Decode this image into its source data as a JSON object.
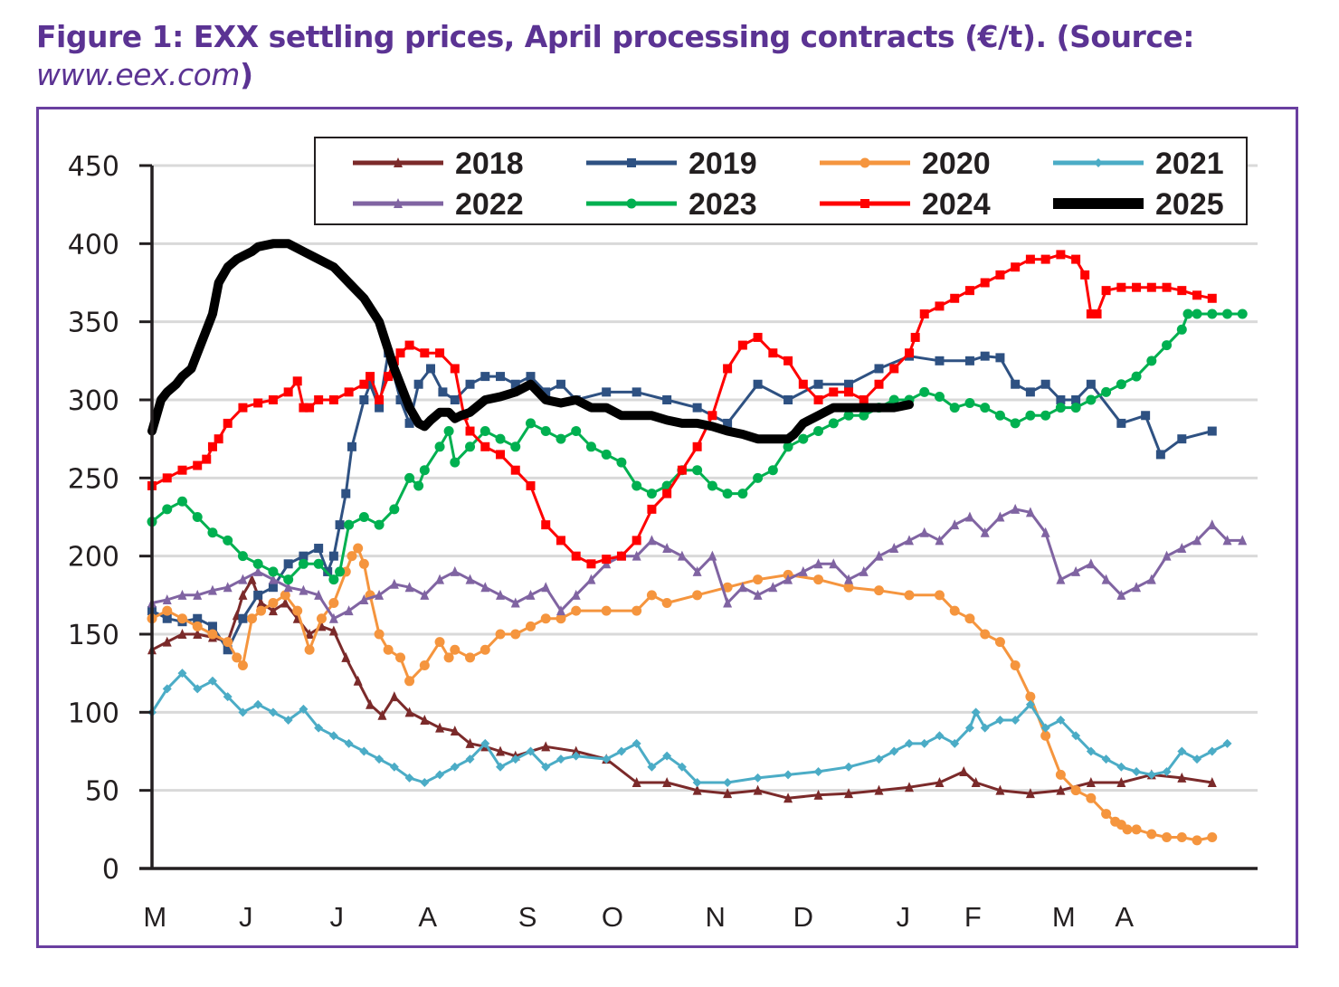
{
  "title": {
    "main": "Figure 1: EXX settling prices, April processing contracts (€/t). (Source:",
    "source": "www.eex.com",
    "close": ")"
  },
  "chart_data": {
    "type": "line",
    "title": "Figure 1: EXX settling prices, April processing contracts (€/t). (Source: www.eex.com)",
    "xlabel": "",
    "ylabel": "",
    "ylim": [
      0,
      450
    ],
    "xlim": [
      0,
      365
    ],
    "x_unit": "days from start of May",
    "yticks": [
      0,
      50,
      100,
      150,
      200,
      250,
      300,
      350,
      400,
      450
    ],
    "ytick_labels": [
      "0",
      "50",
      "100",
      "150",
      "200",
      "250",
      "300",
      "350",
      "400",
      "450"
    ],
    "month_ticks": [
      {
        "label": "M",
        "x": 1
      },
      {
        "label": "J",
        "x": 31
      },
      {
        "label": "J",
        "x": 61
      },
      {
        "label": "A",
        "x": 91
      },
      {
        "label": "S",
        "x": 124
      },
      {
        "label": "O",
        "x": 152
      },
      {
        "label": "N",
        "x": 186
      },
      {
        "label": "D",
        "x": 215
      },
      {
        "label": "J",
        "x": 248
      },
      {
        "label": "F",
        "x": 271
      },
      {
        "label": "M",
        "x": 301
      },
      {
        "label": "A",
        "x": 321
      }
    ],
    "grid": true,
    "legend": "top-right",
    "series": [
      {
        "name": "2018",
        "color": "#7b2a2a",
        "marker": "triangle",
        "width": 3,
        "x": [
          0,
          5,
          10,
          15,
          20,
          25,
          28,
          30,
          33,
          36,
          40,
          44,
          48,
          52,
          56,
          60,
          64,
          68,
          72,
          76,
          80,
          85,
          90,
          95,
          100,
          105,
          110,
          115,
          120,
          130,
          140,
          150,
          160,
          170,
          180,
          190,
          200,
          210,
          220,
          230,
          240,
          250,
          260,
          268,
          272,
          280,
          290,
          300,
          310,
          320,
          330,
          340,
          350
        ],
        "y": [
          140,
          145,
          150,
          150,
          148,
          145,
          162,
          175,
          185,
          170,
          165,
          170,
          160,
          150,
          155,
          152,
          135,
          120,
          105,
          98,
          110,
          100,
          95,
          90,
          88,
          80,
          78,
          75,
          72,
          78,
          75,
          70,
          55,
          55,
          50,
          48,
          50,
          45,
          47,
          48,
          50,
          52,
          55,
          62,
          55,
          50,
          48,
          50,
          55,
          55,
          60,
          58,
          55
        ]
      },
      {
        "name": "2019",
        "color": "#2e5182",
        "marker": "square",
        "width": 3,
        "x": [
          0,
          5,
          10,
          15,
          20,
          25,
          30,
          35,
          40,
          45,
          50,
          55,
          58,
          60,
          62,
          64,
          66,
          70,
          72,
          75,
          78,
          82,
          85,
          88,
          92,
          96,
          100,
          105,
          110,
          115,
          120,
          125,
          130,
          135,
          140,
          150,
          160,
          170,
          180,
          190,
          200,
          210,
          220,
          230,
          240,
          250,
          260,
          270,
          275,
          280,
          285,
          290,
          295,
          300,
          305,
          310,
          320,
          328,
          333,
          340,
          350
        ],
        "y": [
          165,
          160,
          158,
          160,
          155,
          140,
          160,
          175,
          180,
          195,
          200,
          205,
          190,
          200,
          220,
          240,
          270,
          300,
          310,
          295,
          330,
          300,
          285,
          310,
          320,
          305,
          300,
          310,
          315,
          315,
          310,
          315,
          305,
          310,
          300,
          305,
          305,
          300,
          295,
          285,
          310,
          300,
          310,
          310,
          320,
          328,
          325,
          325,
          328,
          327,
          310,
          305,
          310,
          300,
          300,
          310,
          285,
          290,
          265,
          275,
          280
        ]
      },
      {
        "name": "2020",
        "color": "#f5953e",
        "marker": "circle",
        "width": 3,
        "x": [
          0,
          5,
          10,
          15,
          20,
          25,
          28,
          30,
          33,
          36,
          40,
          44,
          48,
          52,
          56,
          60,
          64,
          66,
          68,
          70,
          72,
          75,
          78,
          82,
          85,
          90,
          95,
          98,
          100,
          105,
          110,
          115,
          120,
          125,
          130,
          135,
          140,
          150,
          160,
          165,
          170,
          180,
          190,
          200,
          210,
          220,
          230,
          240,
          250,
          260,
          265,
          270,
          275,
          280,
          285,
          290,
          295,
          300,
          305,
          310,
          315,
          318,
          320,
          322,
          325,
          330,
          335,
          340,
          345,
          350
        ],
        "y": [
          160,
          165,
          160,
          155,
          150,
          145,
          135,
          130,
          160,
          165,
          170,
          175,
          165,
          140,
          160,
          170,
          190,
          200,
          205,
          195,
          175,
          150,
          140,
          135,
          120,
          130,
          145,
          135,
          140,
          135,
          140,
          150,
          150,
          155,
          160,
          160,
          165,
          165,
          165,
          175,
          170,
          175,
          180,
          185,
          188,
          185,
          180,
          178,
          175,
          175,
          165,
          160,
          150,
          145,
          130,
          110,
          85,
          60,
          50,
          45,
          35,
          30,
          28,
          25,
          25,
          22,
          20,
          20,
          18,
          20
        ]
      },
      {
        "name": "2021",
        "color": "#4bacc6",
        "marker": "diamond",
        "width": 3,
        "x": [
          0,
          5,
          10,
          15,
          20,
          25,
          30,
          35,
          40,
          45,
          50,
          55,
          60,
          65,
          70,
          75,
          80,
          85,
          90,
          95,
          100,
          105,
          110,
          115,
          120,
          125,
          130,
          135,
          140,
          150,
          155,
          160,
          165,
          170,
          175,
          180,
          190,
          200,
          210,
          220,
          230,
          240,
          245,
          250,
          255,
          260,
          265,
          270,
          272,
          275,
          280,
          285,
          290,
          295,
          300,
          305,
          310,
          315,
          320,
          325,
          330,
          335,
          340,
          345,
          350,
          355
        ],
        "y": [
          100,
          115,
          125,
          115,
          120,
          110,
          100,
          105,
          100,
          95,
          102,
          90,
          85,
          80,
          75,
          70,
          65,
          58,
          55,
          60,
          65,
          70,
          80,
          65,
          70,
          75,
          65,
          70,
          72,
          70,
          75,
          80,
          65,
          72,
          65,
          55,
          55,
          58,
          60,
          62,
          65,
          70,
          75,
          80,
          80,
          85,
          80,
          90,
          100,
          90,
          95,
          95,
          105,
          90,
          95,
          85,
          75,
          70,
          65,
          62,
          60,
          62,
          75,
          70,
          75,
          80
        ]
      },
      {
        "name": "2022",
        "color": "#8064a2",
        "marker": "triangle",
        "width": 3,
        "x": [
          0,
          5,
          10,
          15,
          20,
          25,
          30,
          35,
          40,
          45,
          50,
          55,
          60,
          65,
          70,
          75,
          80,
          85,
          90,
          95,
          100,
          105,
          110,
          115,
          120,
          125,
          130,
          135,
          140,
          145,
          150,
          155,
          160,
          165,
          170,
          175,
          180,
          185,
          190,
          195,
          200,
          205,
          210,
          215,
          220,
          225,
          230,
          235,
          240,
          245,
          250,
          255,
          260,
          265,
          270,
          275,
          280,
          285,
          290,
          295,
          300,
          305,
          310,
          315,
          320,
          325,
          330,
          335,
          340,
          345,
          350,
          355,
          360
        ],
        "y": [
          170,
          172,
          175,
          175,
          178,
          180,
          185,
          190,
          185,
          180,
          178,
          175,
          160,
          165,
          172,
          175,
          182,
          180,
          175,
          185,
          190,
          185,
          180,
          175,
          170,
          175,
          180,
          165,
          175,
          185,
          195,
          200,
          200,
          210,
          205,
          200,
          190,
          200,
          170,
          180,
          175,
          180,
          185,
          190,
          195,
          195,
          185,
          190,
          200,
          205,
          210,
          215,
          210,
          220,
          225,
          215,
          225,
          230,
          228,
          215,
          185,
          190,
          195,
          185,
          175,
          180,
          185,
          200,
          205,
          210,
          220,
          210,
          210
        ]
      },
      {
        "name": "2023",
        "color": "#00b050",
        "marker": "circle",
        "width": 3,
        "x": [
          0,
          5,
          10,
          15,
          20,
          25,
          30,
          35,
          40,
          45,
          50,
          55,
          60,
          62,
          65,
          70,
          75,
          80,
          85,
          88,
          90,
          95,
          98,
          100,
          105,
          110,
          115,
          120,
          125,
          130,
          135,
          140,
          145,
          150,
          155,
          160,
          165,
          170,
          175,
          180,
          185,
          190,
          195,
          200,
          205,
          210,
          215,
          220,
          225,
          230,
          235,
          240,
          245,
          250,
          255,
          260,
          265,
          270,
          275,
          280,
          285,
          290,
          295,
          300,
          305,
          310,
          315,
          320,
          325,
          330,
          335,
          340,
          342,
          345,
          350,
          355,
          360
        ],
        "y": [
          222,
          230,
          235,
          225,
          215,
          210,
          200,
          195,
          190,
          185,
          195,
          195,
          185,
          190,
          220,
          225,
          220,
          230,
          250,
          245,
          255,
          270,
          280,
          260,
          270,
          280,
          275,
          270,
          285,
          280,
          275,
          280,
          270,
          265,
          260,
          245,
          240,
          245,
          255,
          255,
          245,
          240,
          240,
          250,
          255,
          270,
          275,
          280,
          285,
          290,
          290,
          295,
          300,
          300,
          305,
          302,
          295,
          298,
          295,
          290,
          285,
          290,
          290,
          295,
          295,
          300,
          305,
          310,
          315,
          325,
          335,
          345,
          355,
          355,
          355,
          355,
          355
        ]
      },
      {
        "name": "2024",
        "color": "#ff0000",
        "marker": "square",
        "width": 3,
        "x": [
          0,
          5,
          10,
          15,
          18,
          20,
          22,
          25,
          30,
          35,
          40,
          45,
          48,
          50,
          52,
          55,
          60,
          65,
          70,
          72,
          75,
          78,
          80,
          82,
          85,
          90,
          95,
          100,
          103,
          105,
          110,
          115,
          120,
          125,
          130,
          135,
          140,
          145,
          150,
          155,
          160,
          165,
          170,
          175,
          180,
          185,
          190,
          195,
          200,
          205,
          210,
          215,
          220,
          225,
          230,
          235,
          240,
          245,
          250,
          252,
          255,
          260,
          265,
          270,
          275,
          280,
          285,
          290,
          295,
          300,
          305,
          308,
          310,
          312,
          315,
          320,
          325,
          330,
          335,
          340,
          345,
          350
        ],
        "y": [
          245,
          250,
          255,
          258,
          262,
          270,
          275,
          285,
          295,
          298,
          300,
          305,
          312,
          295,
          295,
          300,
          300,
          305,
          310,
          315,
          300,
          315,
          325,
          330,
          335,
          330,
          330,
          320,
          290,
          280,
          270,
          265,
          255,
          245,
          220,
          210,
          200,
          195,
          198,
          200,
          210,
          230,
          240,
          255,
          270,
          290,
          320,
          335,
          340,
          330,
          325,
          310,
          300,
          305,
          305,
          300,
          310,
          320,
          330,
          340,
          355,
          360,
          365,
          370,
          375,
          380,
          385,
          390,
          390,
          393,
          390,
          380,
          355,
          355,
          370,
          372,
          372,
          372,
          372,
          370,
          367,
          365
        ]
      },
      {
        "name": "2025",
        "color": "#000000",
        "marker": "none",
        "width": 10,
        "x": [
          0,
          3,
          5,
          8,
          10,
          13,
          15,
          18,
          20,
          22,
          25,
          28,
          30,
          33,
          35,
          40,
          45,
          50,
          55,
          60,
          65,
          70,
          75,
          80,
          85,
          88,
          90,
          92,
          95,
          98,
          100,
          102,
          105,
          110,
          115,
          120,
          125,
          130,
          135,
          140,
          145,
          150,
          155,
          160,
          165,
          170,
          175,
          180,
          185,
          190,
          195,
          200,
          205,
          210,
          212,
          215,
          220,
          225,
          230,
          235,
          240,
          245,
          250
        ],
        "y": [
          280,
          300,
          305,
          310,
          315,
          320,
          330,
          345,
          355,
          375,
          385,
          390,
          392,
          395,
          398,
          400,
          400,
          395,
          390,
          385,
          375,
          365,
          350,
          320,
          295,
          285,
          283,
          287,
          292,
          292,
          288,
          290,
          292,
          300,
          302,
          305,
          310,
          300,
          298,
          300,
          295,
          295,
          290,
          290,
          290,
          287,
          285,
          285,
          283,
          280,
          278,
          275,
          275,
          275,
          278,
          285,
          290,
          295,
          295,
          295,
          295,
          295,
          297
        ]
      }
    ]
  }
}
